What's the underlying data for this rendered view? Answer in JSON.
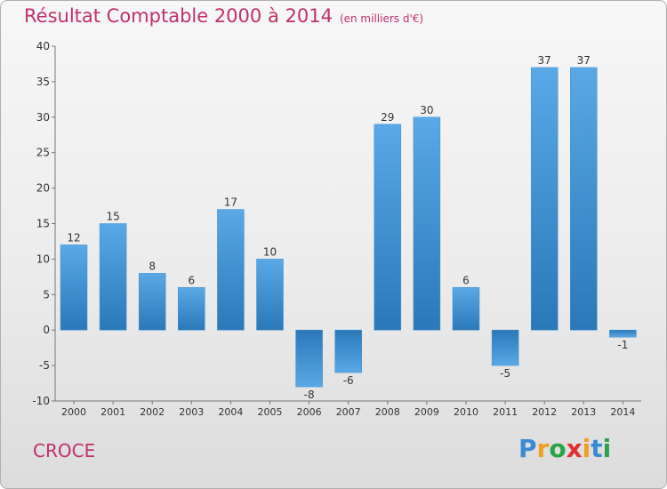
{
  "title": "Résultat Comptable 2000 à 2014",
  "subtitle": "(en milliers d'€)",
  "commune": "CROCE",
  "logo": {
    "letters": [
      "P",
      "r",
      "o",
      "x",
      "i",
      "t",
      "i"
    ],
    "colors": [
      "#3a8ad6",
      "#f0a020",
      "#2aa34a",
      "#e03030",
      "#f0a020",
      "#3a8ad6",
      "#2aa34a"
    ]
  },
  "colors": {
    "title": "#c0306a",
    "bar_light": "#5aa9e6",
    "bar_dark": "#2a78b8"
  },
  "chart_data": {
    "type": "bar",
    "categories": [
      "2000",
      "2001",
      "2002",
      "2003",
      "2004",
      "2005",
      "2006",
      "2007",
      "2008",
      "2009",
      "2010",
      "2011",
      "2012",
      "2013",
      "2014"
    ],
    "values": [
      12,
      15,
      8,
      6,
      17,
      10,
      -8,
      -6,
      29,
      30,
      6,
      -5,
      37,
      37,
      -1
    ],
    "title": "Résultat Comptable 2000 à 2014",
    "xlabel": "",
    "ylabel": "",
    "ylim": [
      -10,
      40
    ],
    "yticks": [
      -10,
      -5,
      0,
      5,
      10,
      15,
      20,
      25,
      30,
      35,
      40
    ],
    "grid": false,
    "legend": "none"
  }
}
